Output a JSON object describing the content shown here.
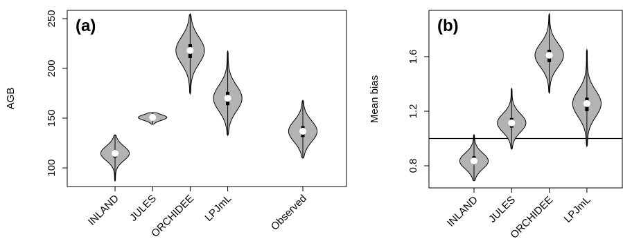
{
  "chart_data": [
    {
      "type": "violin",
      "title": "(a)",
      "y_label": "AGB",
      "categories": [
        "INLAND",
        "JULES",
        "ORCHIDEE",
        "LPJmL",
        null,
        "Observed"
      ],
      "min": [
        86.8,
        143.8,
        174.3,
        132.6,
        null,
        109.7
      ],
      "q1": [
        110.4,
        149,
        210.4,
        163,
        null,
        131
      ],
      "median": [
        114.6,
        150.7,
        218,
        170,
        null,
        136.8
      ],
      "q3": [
        118,
        152,
        224.3,
        176.4,
        null,
        142
      ],
      "max": [
        133.3,
        155.6,
        254.9,
        217.4,
        null,
        168
      ],
      "color": "#b3b3b3",
      "ylim": [
        81.3,
        258.3
      ],
      "yticks": [
        100,
        150,
        200,
        250
      ]
    },
    {
      "type": "violin",
      "title": "(b)",
      "y_label": "Mean bias",
      "categories": [
        "INLAND",
        "JULES",
        "ORCHIDEE",
        "LPJmL"
      ],
      "min": [
        0.689,
        0.921,
        1.332,
        0.942
      ],
      "q1": [
        0.81,
        1.08,
        1.56,
        1.2
      ],
      "median": [
        0.835,
        1.114,
        1.61,
        1.256
      ],
      "q3": [
        0.87,
        1.15,
        1.65,
        1.3
      ],
      "max": [
        1.028,
        1.367,
        1.914,
        1.651
      ],
      "color": "#b3b3b3",
      "ylim": [
        0.638,
        1.939
      ],
      "yticks": [
        0.8,
        1.2,
        1.6
      ],
      "hline": 1
    }
  ]
}
